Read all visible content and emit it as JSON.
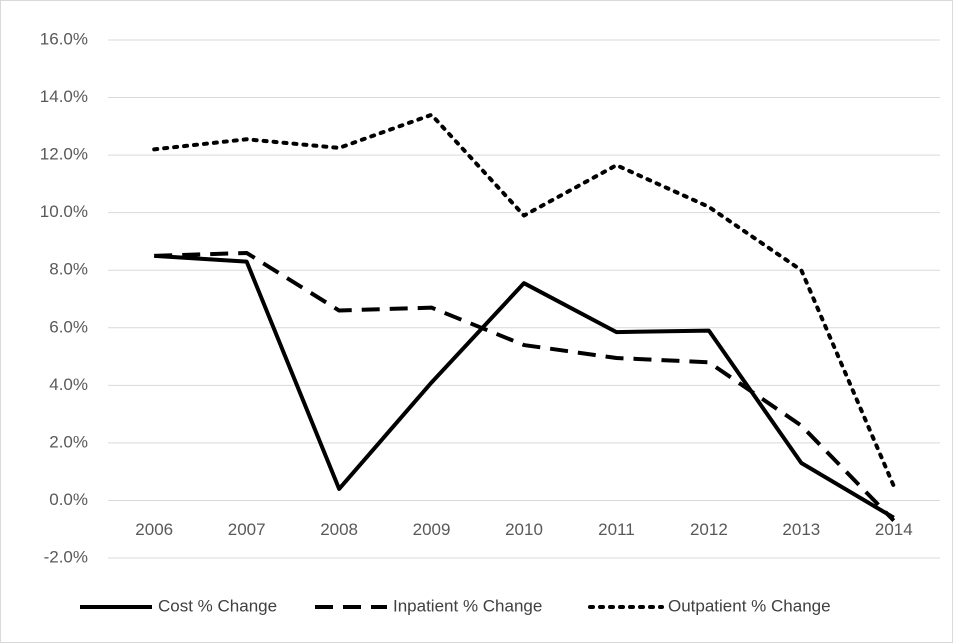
{
  "chart_data": {
    "type": "line",
    "categories": [
      "2006",
      "2007",
      "2008",
      "2009",
      "2010",
      "2011",
      "2012",
      "2013",
      "2014"
    ],
    "series": [
      {
        "name": "Cost % Change",
        "color": "#000000",
        "dash": "solid",
        "values": [
          8.5,
          8.3,
          0.4,
          4.1,
          7.55,
          5.85,
          5.9,
          1.3,
          -0.6
        ]
      },
      {
        "name": "Inpatient % Change",
        "color": "#000000",
        "dash": "dashed",
        "values": [
          8.5,
          8.6,
          6.6,
          6.7,
          5.4,
          4.95,
          4.8,
          2.6,
          -0.7
        ]
      },
      {
        "name": "Outpatient % Change",
        "color": "#000000",
        "dash": "dotted",
        "values": [
          12.2,
          12.55,
          12.25,
          13.4,
          9.9,
          11.65,
          10.2,
          8.0,
          0.5
        ]
      }
    ],
    "ylim": [
      -2,
      16
    ],
    "yticks": [
      {
        "value": -2,
        "label": "-2.0%"
      },
      {
        "value": 0,
        "label": "0.0%"
      },
      {
        "value": 2,
        "label": "2.0%"
      },
      {
        "value": 4,
        "label": "4.0%"
      },
      {
        "value": 6,
        "label": "6.0%"
      },
      {
        "value": 8,
        "label": "8.0%"
      },
      {
        "value": 10,
        "label": "10.0%"
      },
      {
        "value": 12,
        "label": "12.0%"
      },
      {
        "value": 14,
        "label": "14.0%"
      },
      {
        "value": 16,
        "label": "16.0%"
      }
    ],
    "grid": true,
    "legend": "bottom"
  }
}
